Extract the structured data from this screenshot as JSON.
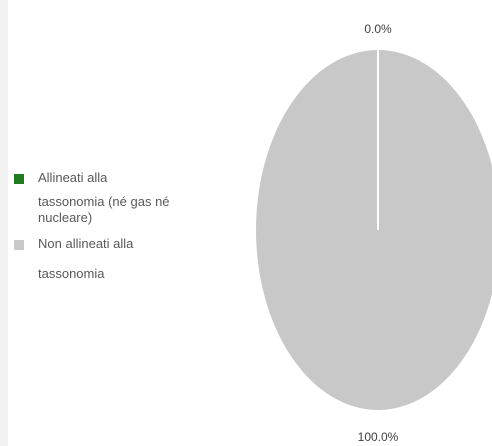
{
  "chart_data": {
    "type": "pie",
    "slices": [
      {
        "name": "Allineati alla tassonomia (né gas né nucleare)",
        "label_lines": [
          "Allineati alla",
          "tassonomia (né gas né nucleare)"
        ],
        "value": 0.0,
        "value_label": "0.0%",
        "color": "#1e7b1e"
      },
      {
        "name": "Non allineati alla tassonomia",
        "label_lines": [
          "Non allineati alla",
          "tassonomia"
        ],
        "value": 100.0,
        "value_label": "100.0%",
        "color": "#c8c8c8"
      }
    ],
    "legend_position": "left"
  }
}
